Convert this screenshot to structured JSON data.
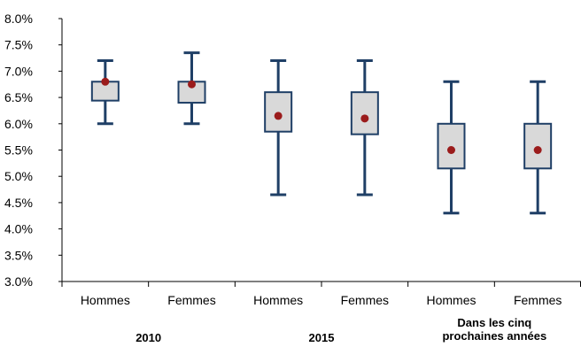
{
  "chart_data": {
    "type": "boxplot",
    "title": "",
    "xlabel": "",
    "ylabel": "",
    "ylim": [
      3.0,
      8.0
    ],
    "y_ticks": [
      "3.0%",
      "3.5%",
      "4.0%",
      "4.5%",
      "5.0%",
      "5.5%",
      "6.0%",
      "6.5%",
      "7.0%",
      "7.5%",
      "8.0%"
    ],
    "grid": false,
    "groups": [
      {
        "label": "2010",
        "label_lines": [
          "2010"
        ]
      },
      {
        "label": "2015",
        "label_lines": [
          "2015"
        ]
      },
      {
        "label": "Dans les cinq prochaines années",
        "label_lines": [
          "Dans les cinq",
          "prochaines années"
        ]
      }
    ],
    "boxes": [
      {
        "group": 0,
        "category": "Hommes",
        "min": 6.0,
        "q1": 6.44,
        "q3": 6.8,
        "max": 7.2,
        "mean": 6.8
      },
      {
        "group": 0,
        "category": "Femmes",
        "min": 6.0,
        "q1": 6.4,
        "q3": 6.8,
        "max": 7.35,
        "mean": 6.75
      },
      {
        "group": 1,
        "category": "Hommes",
        "min": 4.65,
        "q1": 5.85,
        "q3": 6.6,
        "max": 7.2,
        "mean": 6.15
      },
      {
        "group": 1,
        "category": "Femmes",
        "min": 4.65,
        "q1": 5.8,
        "q3": 6.6,
        "max": 7.2,
        "mean": 6.1
      },
      {
        "group": 2,
        "category": "Hommes",
        "min": 4.3,
        "q1": 5.15,
        "q3": 6.0,
        "max": 6.8,
        "mean": 5.5
      },
      {
        "group": 2,
        "category": "Femmes",
        "min": 4.3,
        "q1": 5.15,
        "q3": 6.0,
        "max": 6.8,
        "mean": 5.5
      }
    ],
    "colors": {
      "box_fill": "#d9d9d9",
      "box_stroke": "#1f3f66",
      "mean_marker": "#9b1c1c",
      "axis": "#000000"
    }
  }
}
